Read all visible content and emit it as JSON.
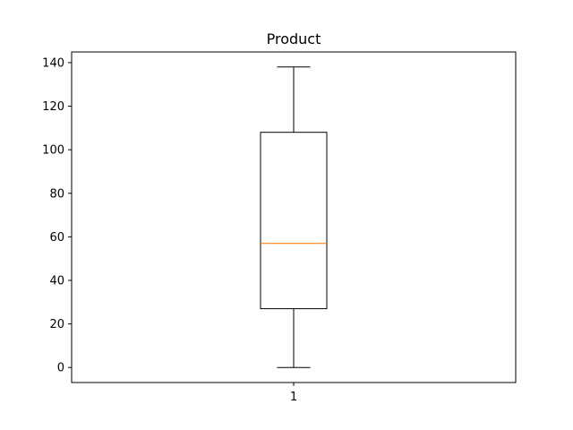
{
  "chart_data": {
    "type": "boxplot",
    "title": "Product",
    "xlabel": "",
    "ylabel": "",
    "categories": [
      "1"
    ],
    "boxes": [
      {
        "category": "1",
        "min": 0,
        "q1": 27,
        "median": 57,
        "q3": 108,
        "max": 138
      }
    ],
    "ylim": [
      -6.9,
      144.9
    ],
    "yticks": [
      0,
      20,
      40,
      60,
      80,
      100,
      120,
      140
    ],
    "grid": false,
    "colors": {
      "box": "#000000",
      "median": "#ff7f0e",
      "axes": "#000000"
    }
  }
}
